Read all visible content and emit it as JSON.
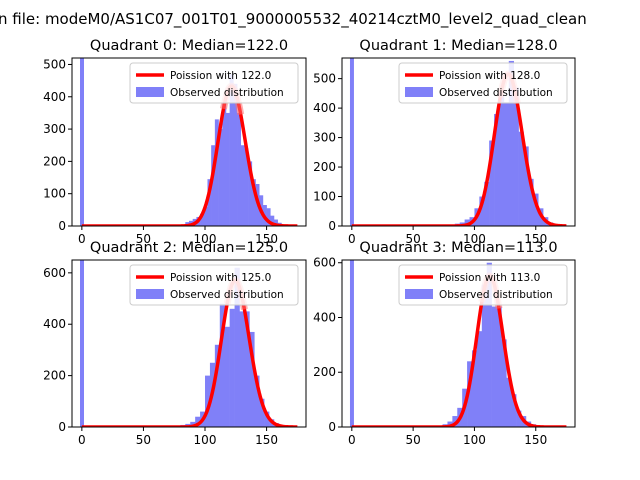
{
  "figure_title": "n file: modeM0/AS1C07_001T01_9000005532_40214cztM0_level2_quad_clean",
  "chart_data": [
    {
      "type": "bar",
      "title": "Quadrant 0: Median=122.0",
      "xlim": [
        -8,
        182
      ],
      "ylim": [
        0,
        520
      ],
      "xticks": [
        0,
        50,
        100,
        150
      ],
      "yticks": [
        0,
        100,
        200,
        300,
        400,
        500
      ],
      "legend": {
        "position": "top-right",
        "entries": [
          "Poission with 122.0",
          "Observed distribution"
        ]
      },
      "series": [
        {
          "name": "Observed distribution",
          "bins": [
            [
              -1.5,
              1.5,
              520
            ],
            [
              84,
              87,
              12
            ],
            [
              87,
              90,
              16
            ],
            [
              90,
              93,
              22
            ],
            [
              93,
              96,
              28
            ],
            [
              96,
              99,
              38
            ],
            [
              99,
              102,
              60
            ],
            [
              102,
              105,
              145
            ],
            [
              105,
              108,
              250
            ],
            [
              108,
              111,
              330
            ],
            [
              111,
              114,
              300
            ],
            [
              114,
              117,
              380
            ],
            [
              117,
              120,
              350
            ],
            [
              120,
              123,
              470
            ],
            [
              123,
              126,
              440
            ],
            [
              126,
              129,
              350
            ],
            [
              129,
              132,
              250
            ],
            [
              132,
              135,
              240
            ],
            [
              135,
              138,
              200
            ],
            [
              138,
              141,
              145
            ],
            [
              141,
              144,
              130
            ],
            [
              144,
              147,
              95
            ],
            [
              147,
              150,
              65
            ],
            [
              150,
              153,
              55
            ],
            [
              153,
              156,
              32
            ],
            [
              156,
              159,
              20
            ],
            [
              159,
              162,
              10
            ],
            [
              162,
              165,
              5
            ],
            [
              165,
              170,
              2
            ]
          ]
        },
        {
          "name": "Poission with 122.0",
          "mean": 122.0,
          "scale": 3
        }
      ]
    },
    {
      "type": "bar",
      "title": "Quadrant 1: Median=128.0",
      "xlim": [
        -8,
        182
      ],
      "ylim": [
        0,
        570
      ],
      "xticks": [
        0,
        50,
        100,
        150
      ],
      "yticks": [
        0,
        100,
        200,
        300,
        400,
        500
      ],
      "legend": {
        "position": "top-right",
        "entries": [
          "Poission with 128.0",
          "Observed distribution"
        ]
      },
      "series": [
        {
          "name": "Observed distribution",
          "bins": [
            [
              -1.5,
              1.5,
              570
            ],
            [
              80,
              84,
              4
            ],
            [
              84,
              88,
              8
            ],
            [
              88,
              92,
              12
            ],
            [
              92,
              96,
              22
            ],
            [
              96,
              100,
              30
            ],
            [
              100,
              104,
              60
            ],
            [
              104,
              108,
              100
            ],
            [
              108,
              112,
              150
            ],
            [
              112,
              116,
              290
            ],
            [
              116,
              120,
              380
            ],
            [
              120,
              124,
              440
            ],
            [
              124,
              128,
              420
            ],
            [
              128,
              132,
              560
            ],
            [
              132,
              136,
              470
            ],
            [
              136,
              140,
              320
            ],
            [
              140,
              144,
              270
            ],
            [
              144,
              148,
              160
            ],
            [
              148,
              152,
              110
            ],
            [
              152,
              156,
              60
            ],
            [
              156,
              160,
              30
            ],
            [
              160,
              164,
              12
            ],
            [
              164,
              170,
              3
            ]
          ]
        },
        {
          "name": "Poission with 128.0",
          "mean": 128.0,
          "scale": 4
        }
      ]
    },
    {
      "type": "bar",
      "title": "Quadrant 2: Median=125.0",
      "xlim": [
        -8,
        182
      ],
      "ylim": [
        0,
        650
      ],
      "xticks": [
        0,
        50,
        100,
        150
      ],
      "yticks": [
        0,
        200,
        400,
        600
      ],
      "legend": {
        "position": "top-right",
        "entries": [
          "Poission with 125.0",
          "Observed distribution"
        ]
      },
      "series": [
        {
          "name": "Observed distribution",
          "bins": [
            [
              -1.5,
              1.5,
              650
            ],
            [
              76,
              80,
              4
            ],
            [
              80,
              84,
              8
            ],
            [
              84,
              88,
              12
            ],
            [
              88,
              92,
              20
            ],
            [
              92,
              96,
              40
            ],
            [
              96,
              100,
              60
            ],
            [
              100,
              104,
              200
            ],
            [
              104,
              108,
              250
            ],
            [
              108,
              112,
              320
            ],
            [
              112,
              116,
              480
            ],
            [
              116,
              120,
              390
            ],
            [
              120,
              124,
              460
            ],
            [
              124,
              128,
              620
            ],
            [
              128,
              132,
              450
            ],
            [
              132,
              136,
              450
            ],
            [
              136,
              140,
              370
            ],
            [
              140,
              144,
              200
            ],
            [
              144,
              148,
              110
            ],
            [
              148,
              152,
              60
            ],
            [
              152,
              156,
              30
            ],
            [
              156,
              160,
              15
            ],
            [
              160,
              166,
              5
            ]
          ]
        },
        {
          "name": "Poission with 125.0",
          "mean": 125.0,
          "scale": 4
        }
      ]
    },
    {
      "type": "bar",
      "title": "Quadrant 3: Median=113.0",
      "xlim": [
        -8,
        182
      ],
      "ylim": [
        0,
        610
      ],
      "xticks": [
        0,
        50,
        100,
        150
      ],
      "yticks": [
        0,
        200,
        400,
        600
      ],
      "legend": {
        "position": "top-right",
        "entries": [
          "Poission with 113.0",
          "Observed distribution"
        ]
      },
      "series": [
        {
          "name": "Observed distribution",
          "bins": [
            [
              -1.5,
              1.5,
              610
            ],
            [
              70,
              74,
              4
            ],
            [
              74,
              78,
              10
            ],
            [
              78,
              82,
              20
            ],
            [
              82,
              86,
              40
            ],
            [
              86,
              90,
              70
            ],
            [
              90,
              94,
              140
            ],
            [
              94,
              98,
              240
            ],
            [
              98,
              102,
              280
            ],
            [
              102,
              106,
              350
            ],
            [
              106,
              110,
              520
            ],
            [
              110,
              114,
              600
            ],
            [
              114,
              118,
              440
            ],
            [
              118,
              122,
              440
            ],
            [
              122,
              126,
              320
            ],
            [
              126,
              130,
              180
            ],
            [
              130,
              134,
              120
            ],
            [
              134,
              138,
              60
            ],
            [
              138,
              142,
              40
            ],
            [
              142,
              146,
              20
            ],
            [
              146,
              150,
              10
            ],
            [
              150,
              156,
              4
            ]
          ]
        },
        {
          "name": "Poission with 113.0",
          "mean": 113.0,
          "scale": 4
        }
      ]
    }
  ]
}
